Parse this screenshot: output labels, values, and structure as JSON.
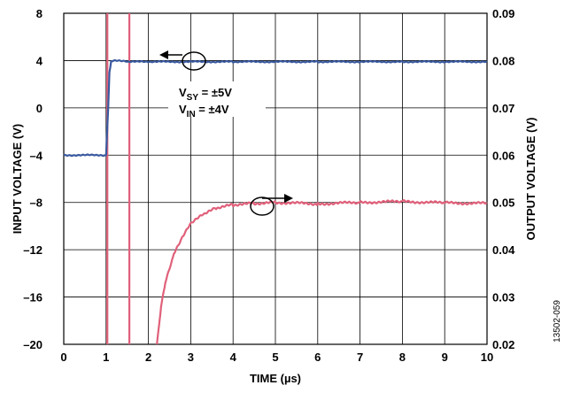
{
  "chart_data": {
    "type": "line",
    "xlabel": "TIME (µs)",
    "ylabel_left": "INPUT VOLTAGE (V)",
    "ylabel_right": "OUTPUT VOLTAGE (V)",
    "xlim": [
      0,
      10
    ],
    "ylim_left": [
      -20,
      8
    ],
    "ylim_right": [
      0.02,
      0.09
    ],
    "x_ticks": [
      "0",
      "1",
      "2",
      "3",
      "4",
      "5",
      "6",
      "7",
      "8",
      "9",
      "10"
    ],
    "y_left_ticks": [
      "8",
      "4",
      "0",
      "–4",
      "–8",
      "–12",
      "–16",
      "–20"
    ],
    "y_right_ticks": [
      "0.09",
      "0.08",
      "0.07",
      "0.06",
      "0.05",
      "0.04",
      "0.03",
      "0.02"
    ],
    "grid": true,
    "annotation": {
      "line1_main": "V",
      "line1_sub": "SY",
      "line1_rest": " = ±5V",
      "line2_main": "V",
      "line2_sub": "IN",
      "line2_rest": " = ±4V"
    },
    "figure_id": "13502-059",
    "colors": {
      "input": "#3a5aa0",
      "output": "#e0607a"
    },
    "series": [
      {
        "axis": "left",
        "x": [
          0,
          1.0,
          1.05,
          1.08,
          1.12,
          1.2,
          1.5,
          2,
          4,
          6,
          8,
          10
        ],
        "values": [
          -4,
          -4,
          0,
          3,
          3.9,
          4,
          3.9,
          3.9,
          3.9,
          3.9,
          3.9,
          3.9
        ]
      },
      {
        "axis": "right",
        "x": [
          2.2,
          2.3,
          2.4,
          2.6,
          2.8,
          3.0,
          3.3,
          3.6,
          4.0,
          4.5,
          5,
          6,
          7,
          8,
          9,
          10
        ],
        "values": [
          0.02,
          0.028,
          0.033,
          0.039,
          0.0425,
          0.0455,
          0.0475,
          0.0488,
          0.0495,
          0.0498,
          0.05,
          0.0497,
          0.05,
          0.0502,
          0.0499,
          0.0498
        ]
      }
    ],
    "markers_x": [
      1.03,
      1.55
    ]
  }
}
